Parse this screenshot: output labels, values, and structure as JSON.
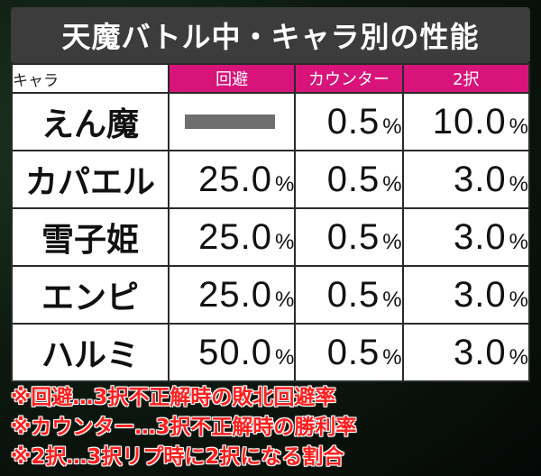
{
  "title": "天魔バトル中・キャラ別の性能",
  "table": {
    "headers": [
      "キャラ",
      "回避",
      "カウンター",
      "2択"
    ],
    "header_colors": {
      "accent": "#d8147a",
      "title_bg": "#3c3c3c"
    },
    "rows": [
      {
        "name": "えん魔",
        "evade": null,
        "evade_pct": "",
        "counter": "0.5",
        "counter_pct": "%",
        "choice2": "10.0",
        "choice2_pct": "%"
      },
      {
        "name": "カパエル",
        "evade": "25.0",
        "evade_pct": "%",
        "counter": "0.5",
        "counter_pct": "%",
        "choice2": "3.0",
        "choice2_pct": "%"
      },
      {
        "name": "雪子姫",
        "evade": "25.0",
        "evade_pct": "%",
        "counter": "0.5",
        "counter_pct": "%",
        "choice2": "3.0",
        "choice2_pct": "%"
      },
      {
        "name": "エンピ",
        "evade": "25.0",
        "evade_pct": "%",
        "counter": "0.5",
        "counter_pct": "%",
        "choice2": "3.0",
        "choice2_pct": "%"
      },
      {
        "name": "ハルミ",
        "evade": "50.0",
        "evade_pct": "%",
        "counter": "0.5",
        "counter_pct": "%",
        "choice2": "3.0",
        "choice2_pct": "%"
      }
    ]
  },
  "notes": [
    "※回避…3択不正解時の敗北回避率",
    "※カウンター…3択不正解時の勝利率",
    "※2択…3択リプ時に2択になる割合"
  ],
  "note_color": "#ff1f1f"
}
